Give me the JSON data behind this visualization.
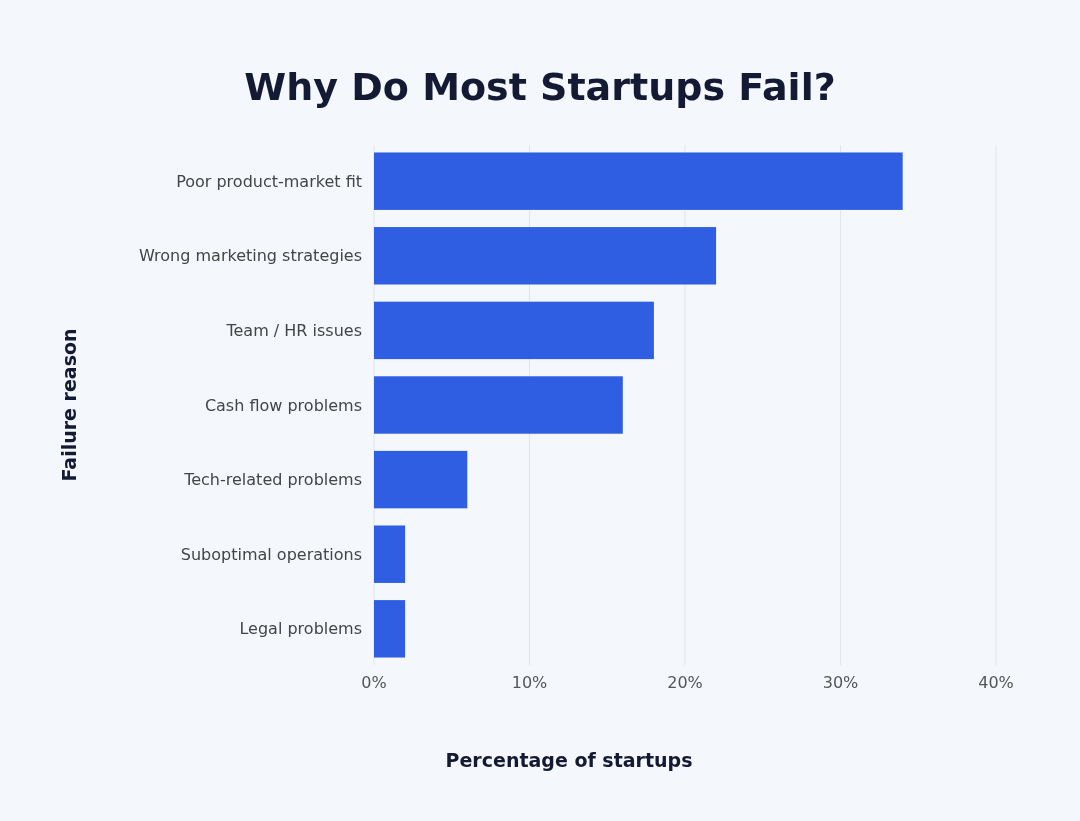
{
  "chart_data": {
    "type": "bar",
    "orientation": "horizontal",
    "title": "Why Do Most Startups Fail?",
    "xlabel": "Percentage of startups",
    "ylabel": "Failure reason",
    "categories": [
      "Poor product-market fit",
      "Wrong marketing strategies",
      "Team / HR issues",
      "Cash flow problems",
      "Tech-related problems",
      "Suboptimal operations",
      "Legal problems"
    ],
    "values": [
      34,
      22,
      18,
      16,
      6,
      2,
      2
    ],
    "color": "#2f5ee2",
    "xlim": [
      0,
      40
    ],
    "xticks": [
      {
        "value": 0,
        "label": "0%"
      },
      {
        "value": 10,
        "label": "10%"
      },
      {
        "value": 20,
        "label": "20%"
      },
      {
        "value": 30,
        "label": "30%"
      },
      {
        "value": 40,
        "label": "40%"
      }
    ],
    "grid": "x"
  }
}
